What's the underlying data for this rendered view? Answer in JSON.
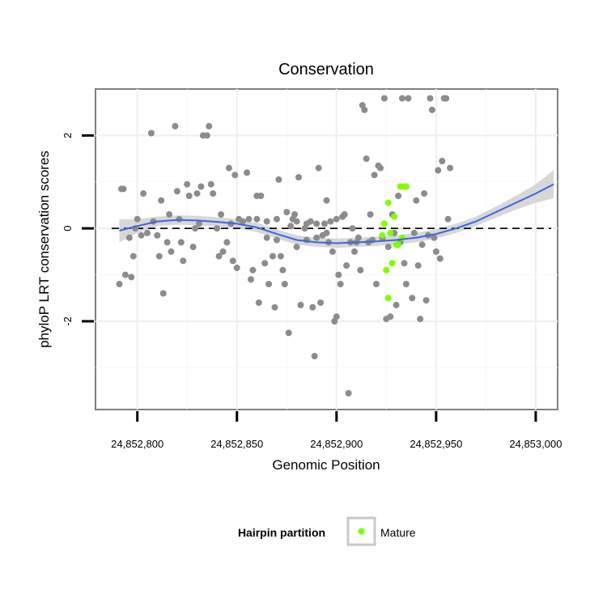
{
  "chart_data": {
    "type": "scatter",
    "title": "Conservation",
    "xlabel": "Genomic Position",
    "ylabel": "phyloP LRT conservation scores",
    "xlim": [
      24852779,
      24853011
    ],
    "ylim": [
      -3.9,
      3.0
    ],
    "x_ticks": [
      24852800,
      24852850,
      24852900,
      24852950,
      24853000
    ],
    "x_tick_labels": [
      "24,852,800",
      "24,852,850",
      "24,852,900",
      "24,852,950",
      "24,853,000"
    ],
    "y_ticks": [
      -2,
      0,
      2
    ],
    "y_tick_labels": [
      "-2",
      "0",
      "2"
    ],
    "grid": true,
    "reference_line": {
      "y": 0,
      "style": "dashed"
    },
    "legend": {
      "title": "Hairpin partition",
      "placement": "bottom",
      "entries": [
        {
          "label": "Mature",
          "color": "#7FFF00"
        }
      ]
    },
    "colors": {
      "points": "#8C8C8C",
      "mature": "#7FFF00",
      "smooth": "#3A66E0",
      "band": "#D3D3D3"
    },
    "series": [
      {
        "name": "",
        "color": "#8C8C8C",
        "points": [
          [
            24852791,
            -1.2
          ],
          [
            24852792,
            0.85
          ],
          [
            24852793,
            0.85
          ],
          [
            24852794,
            -1.0
          ],
          [
            24852796,
            -0.2
          ],
          [
            24852797,
            -1.05
          ],
          [
            24852798,
            -0.6
          ],
          [
            24852799,
            0.0
          ],
          [
            24852800,
            0.2
          ],
          [
            24852802,
            -0.15
          ],
          [
            24852803,
            0.75
          ],
          [
            24852805,
            -0.1
          ],
          [
            24852807,
            2.05
          ],
          [
            24852808,
            0.15
          ],
          [
            24852810,
            -0.15
          ],
          [
            24852811,
            -0.6
          ],
          [
            24852812,
            0.6
          ],
          [
            24852813,
            -1.4
          ],
          [
            24852815,
            -0.3
          ],
          [
            24852816,
            0.3
          ],
          [
            24852817,
            -0.5
          ],
          [
            24852819,
            2.2
          ],
          [
            24852820,
            0.8
          ],
          [
            24852821,
            0.2
          ],
          [
            24852822,
            -0.3
          ],
          [
            24852823,
            -0.7
          ],
          [
            24852825,
            0.95
          ],
          [
            24852826,
            0.7
          ],
          [
            24852828,
            -0.4
          ],
          [
            24852829,
            0.0
          ],
          [
            24852830,
            0.75
          ],
          [
            24852831,
            0.1
          ],
          [
            24852832,
            0.9
          ],
          [
            24852833,
            2.0
          ],
          [
            24852835,
            2.0
          ],
          [
            24852836,
            2.2
          ],
          [
            24852837,
            0.95
          ],
          [
            24852838,
            0.75
          ],
          [
            24852840,
            0.0
          ],
          [
            24852841,
            -0.6
          ],
          [
            24852842,
            0.3
          ],
          [
            24852843,
            -0.5
          ],
          [
            24852845,
            -0.3
          ],
          [
            24852846,
            1.3
          ],
          [
            24852847,
            0.1
          ],
          [
            24852848,
            -0.7
          ],
          [
            24852849,
            1.15
          ],
          [
            24852850,
            -0.85
          ],
          [
            24852851,
            0.2
          ],
          [
            24852853,
            0.15
          ],
          [
            24852855,
            1.2
          ],
          [
            24852856,
            0.2
          ],
          [
            24852857,
            -1.1
          ],
          [
            24852858,
            -0.9
          ],
          [
            24852860,
            0.7
          ],
          [
            24852861,
            -1.6
          ],
          [
            24852862,
            0.7
          ],
          [
            24852864,
            -0.75
          ],
          [
            24852865,
            -0.2
          ],
          [
            24852866,
            -1.2
          ],
          [
            24852868,
            -0.6
          ],
          [
            24852869,
            -1.7
          ],
          [
            24852870,
            -0.25
          ],
          [
            24852871,
            1.05
          ],
          [
            24852872,
            -0.6
          ],
          [
            24852873,
            -0.9
          ],
          [
            24852874,
            -1.2
          ],
          [
            24852876,
            -2.25
          ],
          [
            24852877,
            0.05
          ],
          [
            24852878,
            0.2
          ],
          [
            24852879,
            0.3
          ],
          [
            24852880,
            -0.4
          ],
          [
            24852881,
            1.1
          ],
          [
            24852882,
            -1.65
          ],
          [
            24852884,
            0.0
          ],
          [
            24852885,
            0.1
          ],
          [
            24852887,
            0.15
          ],
          [
            24852888,
            -1.7
          ],
          [
            24852889,
            -2.75
          ],
          [
            24852890,
            -0.2
          ],
          [
            24852891,
            1.3
          ],
          [
            24852892,
            -1.6
          ],
          [
            24852893,
            -0.15
          ],
          [
            24852894,
            0.1
          ],
          [
            24852895,
            0.6
          ],
          [
            24852896,
            -0.3
          ],
          [
            24852897,
            0.15
          ],
          [
            24852898,
            -0.5
          ],
          [
            24852899,
            -2.0
          ],
          [
            24852900,
            -1.9
          ],
          [
            24852901,
            -1.0
          ],
          [
            24852902,
            -1.2
          ],
          [
            24852903,
            0.25
          ],
          [
            24852904,
            0.3
          ],
          [
            24852905,
            -0.8
          ],
          [
            24852906,
            -3.55
          ],
          [
            24852907,
            -0.3
          ],
          [
            24852908,
            0.0
          ],
          [
            24852909,
            -0.5
          ],
          [
            24852910,
            -0.3
          ],
          [
            24852911,
            -0.2
          ],
          [
            24852912,
            -0.9
          ],
          [
            24852913,
            2.65
          ],
          [
            24852914,
            2.55
          ],
          [
            24852915,
            1.5
          ],
          [
            24852916,
            -0.3
          ],
          [
            24852917,
            0.3
          ],
          [
            24852918,
            -0.25
          ],
          [
            24852919,
            1.15
          ],
          [
            24852920,
            -1.2
          ],
          [
            24852921,
            1.35
          ],
          [
            24852922,
            1.3
          ],
          [
            24852923,
            -0.2
          ],
          [
            24852924,
            2.8
          ],
          [
            24852925,
            -1.95
          ],
          [
            24852926,
            -0.4
          ],
          [
            24852927,
            -1.9
          ],
          [
            24852928,
            0.3
          ],
          [
            24852929,
            -0.1
          ],
          [
            24852930,
            -1.65
          ],
          [
            24852931,
            0.7
          ],
          [
            24852932,
            -0.3
          ],
          [
            24852933,
            2.8
          ],
          [
            24852934,
            -0.75
          ],
          [
            24852935,
            -1.2
          ],
          [
            24852936,
            2.8
          ],
          [
            24852938,
            -1.5
          ],
          [
            24852939,
            -0.1
          ],
          [
            24852940,
            0.6
          ],
          [
            24852941,
            -0.8
          ],
          [
            24852942,
            -1.95
          ],
          [
            24852943,
            -0.35
          ],
          [
            24852944,
            0.75
          ],
          [
            24852945,
            -1.55
          ],
          [
            24852946,
            -0.15
          ],
          [
            24852947,
            2.8
          ],
          [
            24852948,
            2.55
          ],
          [
            24852949,
            -0.2
          ],
          [
            24852950,
            -0.5
          ],
          [
            24852951,
            1.25
          ],
          [
            24852952,
            -0.65
          ],
          [
            24852953,
            1.45
          ],
          [
            24852954,
            2.8
          ],
          [
            24852955,
            2.8
          ],
          [
            24852956,
            0.2
          ],
          [
            24852957,
            1.3
          ],
          [
            24852860,
            0.2
          ],
          [
            24852865,
            0.15
          ],
          [
            24852870,
            0.2
          ],
          [
            24852875,
            0.35
          ],
          [
            24852880,
            0.15
          ],
          [
            24852885,
            -0.25
          ],
          [
            24852890,
            0.1
          ],
          [
            24852895,
            -0.1
          ],
          [
            24852900,
            0.2
          ]
        ]
      },
      {
        "name": "Mature",
        "color": "#7FFF00",
        "points": [
          [
            24852924,
            0.1
          ],
          [
            24852925,
            -0.9
          ],
          [
            24852926,
            0.55
          ],
          [
            24852926,
            -1.5
          ],
          [
            24852927,
            -0.1
          ],
          [
            24852928,
            -0.75
          ],
          [
            24852929,
            0.25
          ],
          [
            24852930,
            -0.35
          ],
          [
            24852931,
            -0.35
          ],
          [
            24852932,
            0.9
          ],
          [
            24852933,
            -0.2
          ],
          [
            24852934,
            0.9
          ],
          [
            24852935,
            0.9
          ],
          [
            24852923,
            -0.15
          ]
        ]
      }
    ],
    "smooth_line": {
      "x": [
        24852791,
        24852800,
        24852810,
        24852820,
        24852830,
        24852840,
        24852850,
        24852860,
        24852870,
        24852880,
        24852890,
        24852900,
        24852910,
        24852920,
        24852930,
        24852940,
        24852950,
        24852960,
        24852970,
        24852980,
        24852990,
        24853000,
        24853009
      ],
      "y": [
        -0.05,
        0.05,
        0.15,
        0.18,
        0.17,
        0.14,
        0.1,
        0.02,
        -0.12,
        -0.25,
        -0.3,
        -0.32,
        -0.3,
        -0.28,
        -0.25,
        -0.2,
        -0.12,
        0.0,
        0.15,
        0.35,
        0.55,
        0.75,
        0.95
      ],
      "band_half_width": [
        0.25,
        0.15,
        0.1,
        0.1,
        0.1,
        0.1,
        0.1,
        0.1,
        0.1,
        0.1,
        0.1,
        0.1,
        0.1,
        0.1,
        0.1,
        0.1,
        0.1,
        0.1,
        0.1,
        0.12,
        0.15,
        0.2,
        0.3
      ]
    }
  }
}
